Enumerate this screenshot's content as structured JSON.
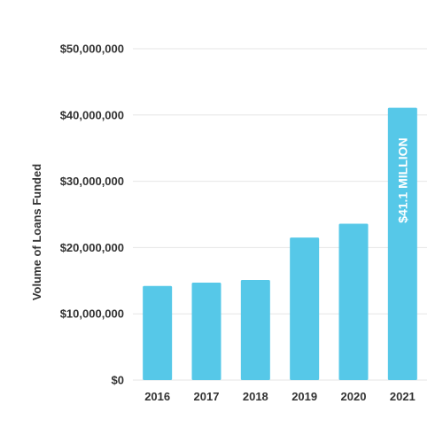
{
  "chart_data": {
    "type": "bar",
    "categories": [
      "2016",
      "2017",
      "2018",
      "2019",
      "2020",
      "2021"
    ],
    "values": [
      14200000,
      14700000,
      15100000,
      21500000,
      23600000,
      41100000
    ],
    "ylabel": "Volume of Loans Funded",
    "ylim": [
      0,
      50000000
    ],
    "yticks": [
      0,
      10000000,
      20000000,
      30000000,
      40000000,
      50000000
    ],
    "ytick_labels": [
      "$0",
      "$10,000,000",
      "$20,000,000",
      "$30,000,000",
      "$40,000,000",
      "$50,000,000"
    ],
    "data_labels": [
      {
        "category": "2021",
        "text": "$41.1 MILLION"
      }
    ],
    "grid": true,
    "bar_color": "#56C8E8",
    "grid_color": "#e6e6e6"
  }
}
